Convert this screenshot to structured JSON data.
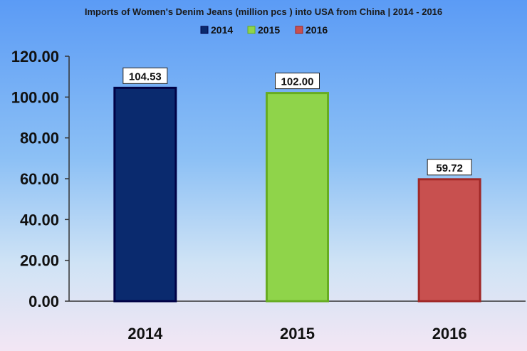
{
  "chart_data": {
    "type": "bar",
    "title": "Imports of Women's Denim Jeans (million pcs ) into USA from China | 2014 - 2016",
    "categories": [
      "2014",
      "2015",
      "2016"
    ],
    "series": [
      {
        "name": "2014",
        "values": [
          104.53,
          null,
          null
        ],
        "color": "#0a2a6e",
        "label": "104.53"
      },
      {
        "name": "2015",
        "values": [
          null,
          102.0,
          null
        ],
        "color": "#8fd44a",
        "label": "102.00"
      },
      {
        "name": "2016",
        "values": [
          null,
          null,
          59.72
        ],
        "color": "#c8504f",
        "label": "59.72"
      }
    ],
    "ylim": [
      0,
      120
    ],
    "yticks": [
      "0.00",
      "20.00",
      "40.00",
      "60.00",
      "80.00",
      "100.00",
      "120.00"
    ],
    "legend_position": "top-center",
    "grid": false
  }
}
